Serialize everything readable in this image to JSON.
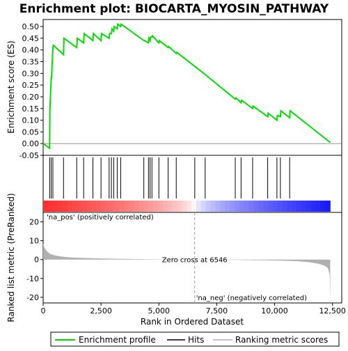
{
  "chart_data": {
    "type": "line",
    "title": "Enrichment plot: BIOCARTA_MYOSIN_PATHWAY",
    "top_panel": {
      "ylabel": "Enrichment score (ES)",
      "ylim": [
        -0.05,
        0.53
      ],
      "yticks": [
        "-0.05",
        "0.00",
        "0.05",
        "0.10",
        "0.15",
        "0.20",
        "0.25",
        "0.30",
        "0.35",
        "0.40",
        "0.45",
        "0.50"
      ],
      "yticks_values": [
        -0.05,
        0.0,
        0.05,
        0.1,
        0.15,
        0.2,
        0.25,
        0.3,
        0.35,
        0.4,
        0.45,
        0.5
      ],
      "series": [
        {
          "name": "Enrichment profile",
          "color": "#00dd00",
          "x": [
            0,
            280,
            290,
            350,
            360,
            420,
            440,
            880,
            900,
            1450,
            1480,
            1750,
            1770,
            2150,
            2170,
            2500,
            2520,
            2850,
            2870,
            2950,
            2970,
            3050,
            3070,
            3200,
            3220,
            3350,
            3370,
            4350,
            4380,
            4550,
            4570,
            4620,
            4640,
            4700,
            4720,
            5000,
            5020,
            5400,
            5420,
            5750,
            5770,
            6550,
            7000,
            8300,
            8330,
            8550,
            8570,
            9050,
            9070,
            9700,
            9720,
            10100,
            10120,
            10250,
            10270,
            10650,
            10670,
            12400
          ],
          "values": [
            0.0,
            -0.02,
            0.14,
            0.28,
            0.28,
            0.41,
            0.42,
            0.38,
            0.45,
            0.41,
            0.45,
            0.43,
            0.47,
            0.44,
            0.47,
            0.44,
            0.47,
            0.45,
            0.47,
            0.47,
            0.49,
            0.48,
            0.5,
            0.49,
            0.51,
            0.5,
            0.51,
            0.44,
            0.44,
            0.43,
            0.45,
            0.44,
            0.455,
            0.455,
            0.46,
            0.43,
            0.44,
            0.41,
            0.415,
            0.385,
            0.39,
            0.33,
            0.295,
            0.19,
            0.195,
            0.175,
            0.185,
            0.15,
            0.16,
            0.115,
            0.13,
            0.1,
            0.12,
            0.115,
            0.14,
            0.11,
            0.14,
            0.005
          ]
        }
      ],
      "hits_label": "Hits",
      "hits": [
        280,
        350,
        420,
        880,
        1450,
        1750,
        2150,
        2500,
        2850,
        2950,
        3050,
        3200,
        3350,
        4350,
        4550,
        4620,
        4700,
        5000,
        5400,
        5750,
        6550,
        7000,
        8300,
        8550,
        9050,
        9700,
        10100,
        10250,
        10650
      ]
    },
    "bottom_panel": {
      "ylabel": "Ranked list metric (PreRanked)",
      "xlabel": "Rank in Ordered Dataset",
      "ylim": [
        -23,
        25
      ],
      "yticks": [
        "20",
        "10",
        "0",
        "-10",
        "-20"
      ],
      "yticks_values": [
        20,
        10,
        0,
        -10,
        -20
      ],
      "xticks": [
        "0",
        "2,500",
        "5,000",
        "7,500",
        "10,000",
        "12,500"
      ],
      "xticks_values": [
        0,
        2500,
        5000,
        7500,
        10000,
        12500
      ],
      "xlim": [
        0,
        12900
      ],
      "n_genes": 12400,
      "series": [
        {
          "name": "Ranking metric scores",
          "color": "#b0b0b0",
          "x": [
            0,
            50,
            150,
            300,
            500,
            800,
            1200,
            1800,
            2600,
            3500,
            4500,
            5500,
            6546,
            7500,
            8500,
            9500,
            10300,
            11000,
            11500,
            11900,
            12150,
            12300,
            12380,
            12400
          ],
          "values": [
            8.5,
            6.5,
            4.5,
            3.0,
            2.2,
            1.6,
            1.1,
            0.8,
            0.55,
            0.35,
            0.2,
            0.08,
            0.0,
            -0.08,
            -0.2,
            -0.35,
            -0.55,
            -0.9,
            -1.4,
            -2.2,
            -3.2,
            -4.5,
            -8.0,
            -22.0
          ]
        }
      ],
      "zero_cross_label": "Zero cross at 6546",
      "zero_cross": 6546,
      "pos_label": "'na_pos' (positively correlated)",
      "neg_label": "'na_neg' (negatively correlated)",
      "pos_color": "#e00000",
      "neg_color": "#0000dd"
    },
    "legend": {
      "position": "bottom",
      "entries": [
        "Enrichment profile",
        "Hits",
        "Ranking metric scores"
      ]
    }
  }
}
